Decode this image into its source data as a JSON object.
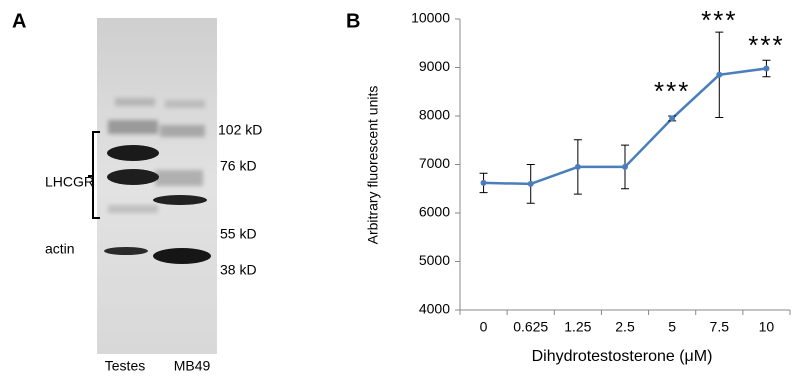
{
  "panel_a": {
    "label": "A",
    "bracket_label": "LHCGR",
    "actin_label": "actin",
    "markers": [
      "102 kD",
      "76 kD",
      "55 kD",
      "38 kD"
    ],
    "lanes": [
      "Testes",
      "MB49"
    ]
  },
  "panel_b": {
    "label": "B"
  },
  "chart_data": {
    "type": "line",
    "x_label": "Dihydrotestosterone (μM)",
    "y_label": "Arbitrary fluorescent units",
    "categories": [
      "0",
      "0.625",
      "1.25",
      "2.5",
      "5",
      "7.5",
      "10"
    ],
    "values": [
      6620,
      6600,
      6950,
      6950,
      7950,
      8850,
      8980
    ],
    "errors": [
      200,
      400,
      560,
      450,
      50,
      880,
      170
    ],
    "color": "#4a7ebb",
    "annotations": [
      "***",
      "***",
      "***"
    ],
    "ylim": [
      4000,
      10000
    ],
    "yticks": [
      4000,
      5000,
      6000,
      7000,
      8000,
      9000,
      10000
    ]
  }
}
